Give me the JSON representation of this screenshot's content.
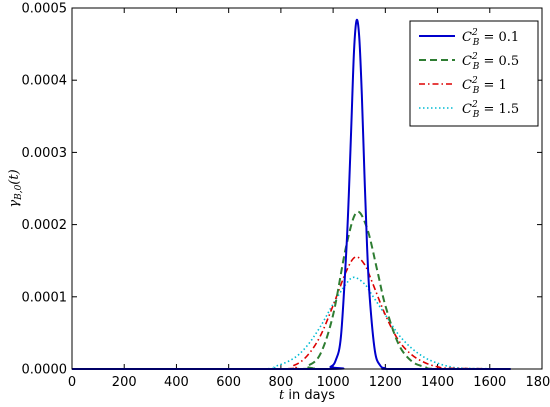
{
  "chart_data": {
    "type": "line",
    "xlabel_var": "t",
    "xlabel_rest": " in days",
    "ylabel_main": "γ",
    "ylabel_sub": "B,0",
    "ylabel_arg": "(t)",
    "xlim": [
      0,
      1800
    ],
    "ylim": [
      0,
      0.0005
    ],
    "x_ticks": [
      0,
      200,
      400,
      600,
      800,
      1000,
      1200,
      1400,
      1600,
      1800
    ],
    "x_tick_labels": [
      "0",
      "200",
      "400",
      "600",
      "800",
      "1000",
      "1200",
      "1400",
      "1600",
      "1800"
    ],
    "y_ticks": [
      0,
      0.0001,
      0.0002,
      0.0003,
      0.0004,
      0.0005
    ],
    "y_tick_labels": [
      "0.0000",
      "0.0001",
      "0.0002",
      "0.0003",
      "0.0004",
      "0.0005"
    ],
    "grid": false,
    "legend_position": "top-right",
    "series": [
      {
        "name": "C_B^2 = 0.1",
        "legend_value": "0.1",
        "color": "#0000cc",
        "style": "solid",
        "peak_x": 1090,
        "peak_y": 0.000483,
        "x": [
          0,
          960,
          990,
          1010,
          1030,
          1050,
          1060,
          1070,
          1080,
          1090,
          1100,
          1110,
          1120,
          1130,
          1140,
          1160,
          1180,
          1200,
          1230,
          1680
        ],
        "values": [
          0,
          0,
          3e-06,
          1.2e-05,
          4.5e-05,
          0.00016,
          0.00024,
          0.00034,
          0.00044,
          0.000483,
          0.00046,
          0.00038,
          0.00027,
          0.00017,
          0.0001,
          2.5e-05,
          5e-06,
          1e-06,
          0,
          0
        ]
      },
      {
        "name": "C_B^2 = 0.5",
        "legend_value": "0.5",
        "color": "#2e7d32",
        "style": "dashed",
        "peak_x": 1090,
        "peak_y": 0.000217,
        "x": [
          0,
          850,
          900,
          950,
          1000,
          1050,
          1090,
          1130,
          1170,
          1200,
          1250,
          1300,
          1350,
          1400,
          1680
        ],
        "values": [
          0,
          0,
          4e-06,
          2e-05,
          7.5e-05,
          0.00017,
          0.000217,
          0.000195,
          0.000135,
          8.8e-05,
          3.5e-05,
          1.1e-05,
          3e-06,
          0,
          0
        ]
      },
      {
        "name": "C_B^2 = 1",
        "legend_value": "1",
        "color": "#dd0000",
        "style": "dashdot",
        "peak_x": 1085,
        "peak_y": 0.000155,
        "x": [
          0,
          780,
          850,
          900,
          950,
          1000,
          1050,
          1085,
          1120,
          1150,
          1200,
          1250,
          1300,
          1350,
          1400,
          1450,
          1680
        ],
        "values": [
          0,
          0,
          5e-06,
          1.8e-05,
          4.5e-05,
          8.8e-05,
          0.000135,
          0.000155,
          0.000145,
          0.00012,
          7.5e-05,
          4e-05,
          2e-05,
          9e-06,
          3e-06,
          1e-06,
          0
        ]
      },
      {
        "name": "C_B^2 = 1.5",
        "legend_value": "1.5",
        "color": "#00bcd4",
        "style": "dotted",
        "peak_x": 1080,
        "peak_y": 0.000127,
        "x": [
          0,
          700,
          780,
          850,
          900,
          950,
          1000,
          1050,
          1080,
          1120,
          1150,
          1200,
          1250,
          1300,
          1350,
          1400,
          1450,
          1500,
          1680
        ],
        "values": [
          0,
          0,
          4e-06,
          1.5e-05,
          3.2e-05,
          5.8e-05,
          9e-05,
          0.000118,
          0.000127,
          0.000118,
          0.000102,
          7.5e-05,
          4.8e-05,
          2.9e-05,
          1.6e-05,
          8e-06,
          3e-06,
          1e-06,
          0
        ]
      }
    ]
  },
  "legend": {
    "var": "C",
    "sup": "2",
    "sub": "B",
    "eq": " = "
  }
}
